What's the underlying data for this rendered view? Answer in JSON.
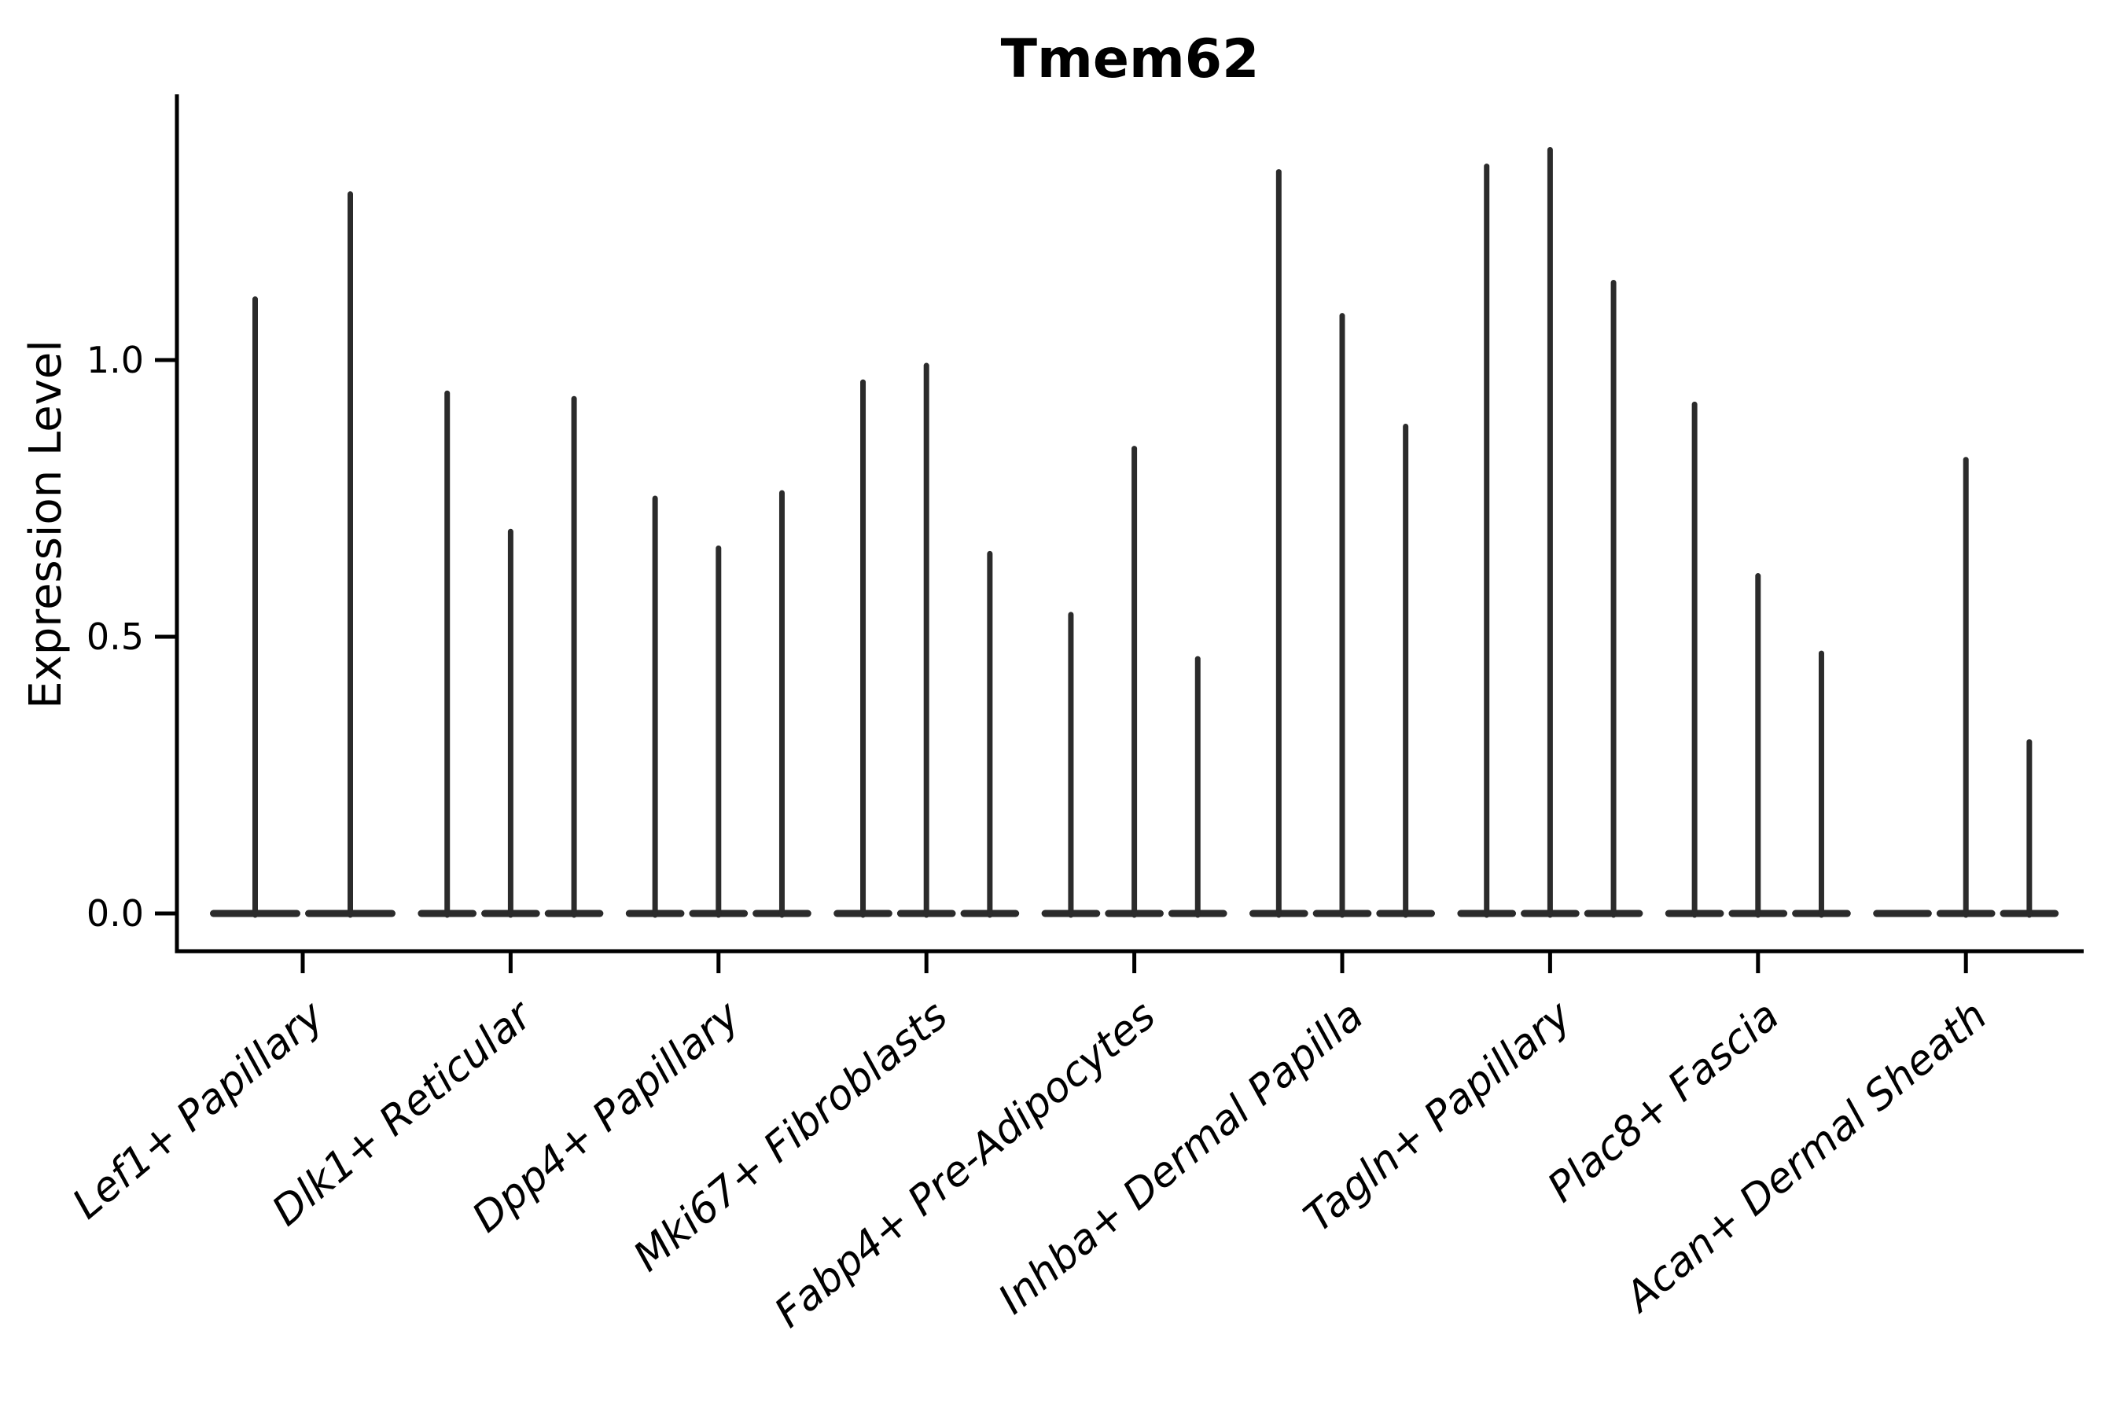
{
  "chart_data": {
    "type": "violin",
    "title": "Tmem62",
    "ylabel": "Expression Level",
    "xlabel": "",
    "yticks": [
      "0.0",
      "0.5",
      "1.0"
    ],
    "ylim": [
      -0.07,
      1.47
    ],
    "grid": false,
    "legend": "none",
    "line_color": "#2b2b2b",
    "axis_color": "#000000",
    "groups": [
      {
        "label": "Lef1+ Papillary",
        "violins": [
          1.11,
          1.3
        ]
      },
      {
        "label": "Dlk1+ Reticular",
        "violins": [
          0.94,
          0.69,
          0.93
        ]
      },
      {
        "label": "Dpp4+ Papillary",
        "violins": [
          0.75,
          0.66,
          0.76
        ]
      },
      {
        "label": "Mki67+ Fibroblasts",
        "violins": [
          0.96,
          0.99,
          0.65
        ]
      },
      {
        "label": "Fabp4+ Pre-Adipocytes",
        "violins": [
          0.54,
          0.84,
          0.46
        ]
      },
      {
        "label": "Inhba+ Dermal Papilla",
        "violins": [
          1.34,
          1.08,
          0.88
        ]
      },
      {
        "label": "Tagln+ Papillary",
        "violins": [
          1.35,
          1.38,
          1.14
        ]
      },
      {
        "label": "Plac8+ Fascia",
        "violins": [
          0.92,
          0.61,
          0.47
        ]
      },
      {
        "label": "Acan+ Dermal Sheath",
        "violins": [
          0.0,
          0.82,
          0.31
        ]
      }
    ]
  }
}
